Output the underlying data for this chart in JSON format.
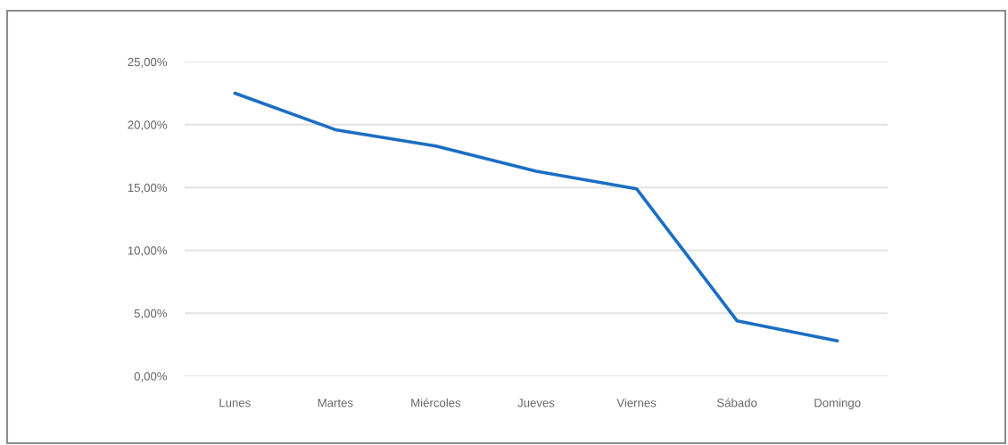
{
  "chart_data": {
    "type": "line",
    "categories": [
      "Lunes",
      "Martes",
      "Miércoles",
      "Jueves",
      "Viernes",
      "Sábado",
      "Domingo"
    ],
    "series": [
      {
        "color": "#1b6ec2",
        "values": [
          22.5,
          19.6,
          18.3,
          16.3,
          14.9,
          4.4,
          2.8
        ]
      }
    ],
    "ylim": [
      0,
      25
    ],
    "yticks": [
      {
        "value": 0,
        "label": "0,00%"
      },
      {
        "value": 5,
        "label": "5,00%"
      },
      {
        "value": 10,
        "label": "10,00%"
      },
      {
        "value": 15,
        "label": "15,00%"
      },
      {
        "value": 20,
        "label": "20,00%"
      },
      {
        "value": 25,
        "label": "25,00%"
      }
    ],
    "grid": "y",
    "line_style": "solid"
  }
}
